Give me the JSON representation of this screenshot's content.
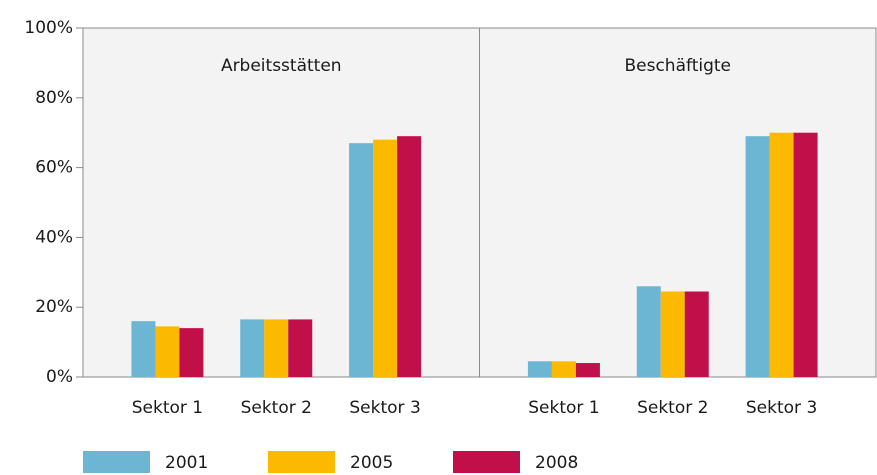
{
  "chart_data": {
    "type": "bar",
    "ylim": [
      0,
      100
    ],
    "yticks": [
      {
        "value": 0,
        "label": "0%"
      },
      {
        "value": 20,
        "label": "20%"
      },
      {
        "value": 40,
        "label": "40%"
      },
      {
        "value": 60,
        "label": "60%"
      },
      {
        "value": 80,
        "label": "80%"
      },
      {
        "value": 100,
        "label": "100%"
      }
    ],
    "series": [
      {
        "name": "2001",
        "color": "#6cb5d3"
      },
      {
        "name": "2005",
        "color": "#fbb900"
      },
      {
        "name": "2008",
        "color": "#c10f4a"
      }
    ],
    "panels": [
      {
        "title": "Arbeitsstätten",
        "categories": [
          "Sektor 1",
          "Sektor 2",
          "Sektor 3"
        ],
        "series": [
          {
            "values": [
              16,
              16.5,
              67
            ]
          },
          {
            "values": [
              14.5,
              16.5,
              68
            ]
          },
          {
            "values": [
              14,
              16.5,
              69
            ]
          }
        ]
      },
      {
        "title": "Beschäftigte",
        "categories": [
          "Sektor 1",
          "Sektor 2",
          "Sektor 3"
        ],
        "series": [
          {
            "values": [
              4.5,
              26,
              69
            ]
          },
          {
            "values": [
              4.5,
              24.5,
              70
            ]
          },
          {
            "values": [
              4,
              24.5,
              70
            ]
          }
        ]
      }
    ]
  }
}
